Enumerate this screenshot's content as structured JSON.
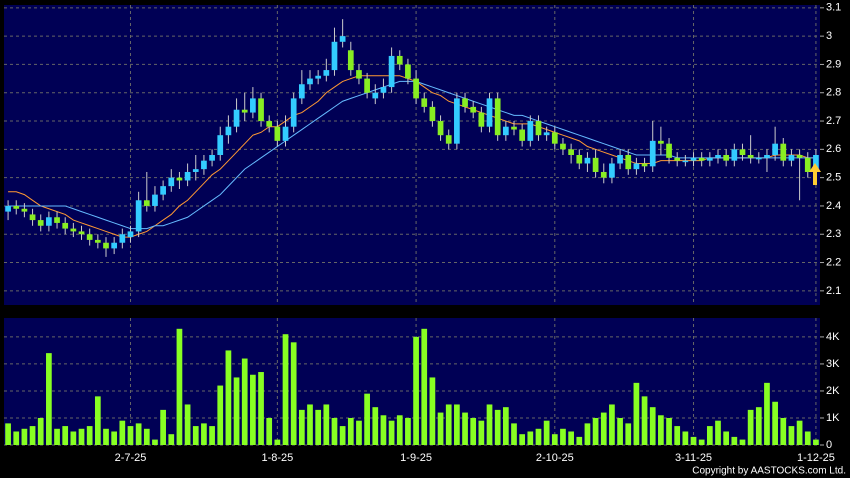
{
  "chart_data": [
    {
      "type": "candlestick",
      "open": [
        2.38,
        2.4,
        2.39,
        2.37,
        2.35,
        2.33,
        2.36,
        2.34,
        2.32,
        2.31,
        2.3,
        2.28,
        2.27,
        2.25,
        2.27,
        2.29,
        2.31,
        2.42,
        2.4,
        2.44,
        2.47,
        2.5,
        2.49,
        2.52,
        2.53,
        2.56,
        2.58,
        2.65,
        2.68,
        2.74,
        2.73,
        2.78,
        2.7,
        2.68,
        2.63,
        2.68,
        2.78,
        2.83,
        2.85,
        2.86,
        2.88,
        2.98,
        2.95,
        2.88,
        2.85,
        2.78,
        2.8,
        2.82,
        2.93,
        2.9,
        2.85,
        2.78,
        2.75,
        2.7,
        2.65,
        2.62,
        2.78,
        2.75,
        2.73,
        2.68,
        2.78,
        2.65,
        2.68,
        2.67,
        2.63,
        2.7,
        2.65,
        2.66,
        2.62,
        2.6,
        2.58,
        2.55,
        2.57,
        2.52,
        2.5,
        2.55,
        2.58,
        2.53,
        2.55,
        2.54,
        2.63,
        2.62,
        2.57,
        2.56,
        2.56,
        2.57,
        2.56,
        2.57,
        2.58,
        2.56,
        2.6,
        2.58,
        2.57,
        2.57,
        2.58,
        2.62,
        2.56,
        2.58,
        2.57,
        2.52
      ],
      "high": [
        2.42,
        2.42,
        2.41,
        2.39,
        2.37,
        2.38,
        2.38,
        2.36,
        2.34,
        2.33,
        2.32,
        2.3,
        2.29,
        2.29,
        2.32,
        2.33,
        2.45,
        2.52,
        2.47,
        2.49,
        2.53,
        2.52,
        2.55,
        2.58,
        2.58,
        2.6,
        2.68,
        2.72,
        2.78,
        2.8,
        2.82,
        2.8,
        2.72,
        2.7,
        2.72,
        2.8,
        2.88,
        2.88,
        2.88,
        2.92,
        3.03,
        3.06,
        2.98,
        2.9,
        2.87,
        2.83,
        2.85,
        2.96,
        2.95,
        2.92,
        2.88,
        2.8,
        2.77,
        2.72,
        2.67,
        2.8,
        2.8,
        2.77,
        2.75,
        2.8,
        2.8,
        2.7,
        2.7,
        2.69,
        2.72,
        2.72,
        2.68,
        2.68,
        2.64,
        2.62,
        2.6,
        2.59,
        2.6,
        2.55,
        2.57,
        2.6,
        2.6,
        2.57,
        2.57,
        2.7,
        2.68,
        2.64,
        2.59,
        2.58,
        2.59,
        2.59,
        2.59,
        2.6,
        2.6,
        2.62,
        2.62,
        2.65,
        2.59,
        2.6,
        2.68,
        2.64,
        2.6,
        2.6,
        2.59,
        2.6
      ],
      "low": [
        2.35,
        2.37,
        2.36,
        2.33,
        2.31,
        2.31,
        2.32,
        2.3,
        2.29,
        2.28,
        2.26,
        2.25,
        2.22,
        2.23,
        2.25,
        2.27,
        2.29,
        2.38,
        2.38,
        2.42,
        2.45,
        2.46,
        2.47,
        2.49,
        2.51,
        2.54,
        2.56,
        2.62,
        2.66,
        2.7,
        2.71,
        2.68,
        2.66,
        2.61,
        2.61,
        2.66,
        2.76,
        2.81,
        2.83,
        2.84,
        2.86,
        2.96,
        2.86,
        2.83,
        2.78,
        2.76,
        2.78,
        2.8,
        2.88,
        2.83,
        2.76,
        2.73,
        2.68,
        2.63,
        2.6,
        2.6,
        2.73,
        2.71,
        2.66,
        2.66,
        2.63,
        2.63,
        2.65,
        2.61,
        2.61,
        2.63,
        2.63,
        2.6,
        2.58,
        2.55,
        2.53,
        2.52,
        2.5,
        2.48,
        2.48,
        2.53,
        2.51,
        2.51,
        2.52,
        2.52,
        2.58,
        2.55,
        2.54,
        2.54,
        2.54,
        2.54,
        2.54,
        2.55,
        2.54,
        2.54,
        2.56,
        2.55,
        2.55,
        2.52,
        2.56,
        2.54,
        2.54,
        2.42,
        2.5,
        2.5
      ],
      "close": [
        2.4,
        2.39,
        2.38,
        2.35,
        2.33,
        2.36,
        2.34,
        2.32,
        2.31,
        2.3,
        2.28,
        2.27,
        2.25,
        2.27,
        2.3,
        2.31,
        2.42,
        2.4,
        2.44,
        2.47,
        2.5,
        2.49,
        2.52,
        2.53,
        2.56,
        2.58,
        2.65,
        2.68,
        2.74,
        2.73,
        2.78,
        2.7,
        2.68,
        2.63,
        2.68,
        2.78,
        2.83,
        2.85,
        2.86,
        2.88,
        2.98,
        3.0,
        2.88,
        2.85,
        2.8,
        2.8,
        2.82,
        2.93,
        2.9,
        2.85,
        2.78,
        2.75,
        2.7,
        2.65,
        2.62,
        2.78,
        2.75,
        2.73,
        2.68,
        2.78,
        2.65,
        2.68,
        2.67,
        2.63,
        2.7,
        2.65,
        2.66,
        2.62,
        2.6,
        2.58,
        2.55,
        2.57,
        2.52,
        2.5,
        2.55,
        2.58,
        2.53,
        2.55,
        2.54,
        2.63,
        2.62,
        2.57,
        2.56,
        2.56,
        2.57,
        2.56,
        2.57,
        2.58,
        2.56,
        2.6,
        2.58,
        2.57,
        2.57,
        2.58,
        2.62,
        2.56,
        2.58,
        2.57,
        2.52,
        2.58
      ],
      "up_color": "#33ccff",
      "down_color": "#88ee22",
      "ma_lines": [
        {
          "color": "#ff9933",
          "values": [
            2.45,
            2.45,
            2.44,
            2.42,
            2.4,
            2.39,
            2.38,
            2.37,
            2.35,
            2.34,
            2.33,
            2.32,
            2.31,
            2.3,
            2.29,
            2.29,
            2.3,
            2.31,
            2.33,
            2.35,
            2.37,
            2.4,
            2.42,
            2.45,
            2.48,
            2.51,
            2.53,
            2.56,
            2.59,
            2.62,
            2.65,
            2.66,
            2.68,
            2.68,
            2.7,
            2.72,
            2.73,
            2.75,
            2.77,
            2.8,
            2.82,
            2.84,
            2.85,
            2.86,
            2.86,
            2.86,
            2.86,
            2.86,
            2.86,
            2.85,
            2.84,
            2.82,
            2.8,
            2.79,
            2.77,
            2.76,
            2.75,
            2.74,
            2.73,
            2.72,
            2.71,
            2.7,
            2.69,
            2.69,
            2.69,
            2.68,
            2.67,
            2.66,
            2.65,
            2.64,
            2.63,
            2.61,
            2.6,
            2.59,
            2.58,
            2.57,
            2.56,
            2.55,
            2.55,
            2.55,
            2.56,
            2.56,
            2.56,
            2.56,
            2.56,
            2.56,
            2.57,
            2.57,
            2.57,
            2.57,
            2.57,
            2.57,
            2.57,
            2.57,
            2.58,
            2.58,
            2.58,
            2.58,
            2.57,
            2.57
          ]
        },
        {
          "color": "#66bbff",
          "values": [
            2.4,
            2.4,
            2.4,
            2.4,
            2.4,
            2.4,
            2.4,
            2.4,
            2.39,
            2.38,
            2.37,
            2.36,
            2.35,
            2.34,
            2.33,
            2.32,
            2.32,
            2.32,
            2.33,
            2.33,
            2.34,
            2.35,
            2.36,
            2.38,
            2.4,
            2.42,
            2.44,
            2.47,
            2.5,
            2.53,
            2.55,
            2.57,
            2.59,
            2.61,
            2.63,
            2.65,
            2.67,
            2.69,
            2.71,
            2.73,
            2.75,
            2.77,
            2.78,
            2.79,
            2.8,
            2.81,
            2.82,
            2.83,
            2.84,
            2.84,
            2.84,
            2.83,
            2.82,
            2.81,
            2.8,
            2.79,
            2.78,
            2.77,
            2.76,
            2.75,
            2.74,
            2.73,
            2.72,
            2.72,
            2.71,
            2.7,
            2.69,
            2.68,
            2.67,
            2.66,
            2.65,
            2.64,
            2.63,
            2.62,
            2.61,
            2.6,
            2.59,
            2.58,
            2.58,
            2.58,
            2.58,
            2.58,
            2.57,
            2.57,
            2.57,
            2.57,
            2.57,
            2.57,
            2.57,
            2.57,
            2.57,
            2.57,
            2.57,
            2.57,
            2.57,
            2.57,
            2.57,
            2.57,
            2.57,
            2.57
          ]
        }
      ],
      "ylim": [
        2.05,
        3.11
      ],
      "yticks": [
        2.1,
        2.2,
        2.3,
        2.4,
        2.5,
        2.6,
        2.7,
        2.8,
        2.9,
        3,
        3.1
      ],
      "grid": true
    },
    {
      "type": "bar",
      "categories": [
        null,
        null,
        null,
        null,
        null,
        null,
        null,
        null,
        null,
        null,
        null,
        null,
        null,
        null,
        null,
        "2-7-25",
        null,
        null,
        null,
        null,
        null,
        null,
        null,
        null,
        null,
        null,
        null,
        null,
        null,
        null,
        null,
        null,
        null,
        "1-8-25",
        null,
        null,
        null,
        null,
        null,
        null,
        null,
        null,
        null,
        null,
        null,
        null,
        null,
        null,
        null,
        null,
        "1-9-25",
        null,
        null,
        null,
        null,
        null,
        null,
        null,
        null,
        null,
        null,
        null,
        null,
        null,
        null,
        null,
        null,
        "2-10-25",
        null,
        null,
        null,
        null,
        null,
        null,
        null,
        null,
        null,
        null,
        null,
        null,
        null,
        null,
        null,
        null,
        "3-11-25",
        null,
        null,
        null,
        null,
        null,
        null,
        null,
        null,
        null,
        null,
        null,
        null,
        null,
        null,
        "1-12-25"
      ],
      "values": [
        800,
        500,
        600,
        700,
        1000,
        3400,
        600,
        700,
        500,
        600,
        700,
        1800,
        600,
        500,
        900,
        700,
        800,
        600,
        200,
        1300,
        400,
        4300,
        1500,
        700,
        800,
        700,
        2200,
        3500,
        2500,
        3200,
        2600,
        2700,
        1000,
        200,
        4100,
        3800,
        1300,
        1500,
        1300,
        1500,
        1000,
        700,
        1000,
        900,
        1900,
        1400,
        1100,
        900,
        1100,
        1000,
        4000,
        4300,
        2500,
        1200,
        1500,
        1500,
        1200,
        1000,
        900,
        1500,
        1300,
        1400,
        800,
        400,
        500,
        600,
        900,
        400,
        600,
        500,
        300,
        800,
        1000,
        1200,
        1500,
        1000,
        800,
        2300,
        1800,
        1400,
        1100,
        1000,
        700,
        500,
        300,
        200,
        700,
        900,
        500,
        300,
        200,
        1300,
        1400,
        2300,
        1600,
        1000,
        700,
        900,
        500,
        200
      ],
      "color": "#88ff22",
      "ylim": [
        0,
        4700
      ],
      "yticks": [
        0,
        {
          "value": 1000,
          "label": "1K"
        },
        {
          "value": 2000,
          "label": "2K"
        },
        {
          "value": 3000,
          "label": "3K"
        },
        {
          "value": 4000,
          "label": "4K"
        }
      ],
      "grid": true
    }
  ],
  "copyright": "Copyright by AASTOCKS.com Ltd."
}
